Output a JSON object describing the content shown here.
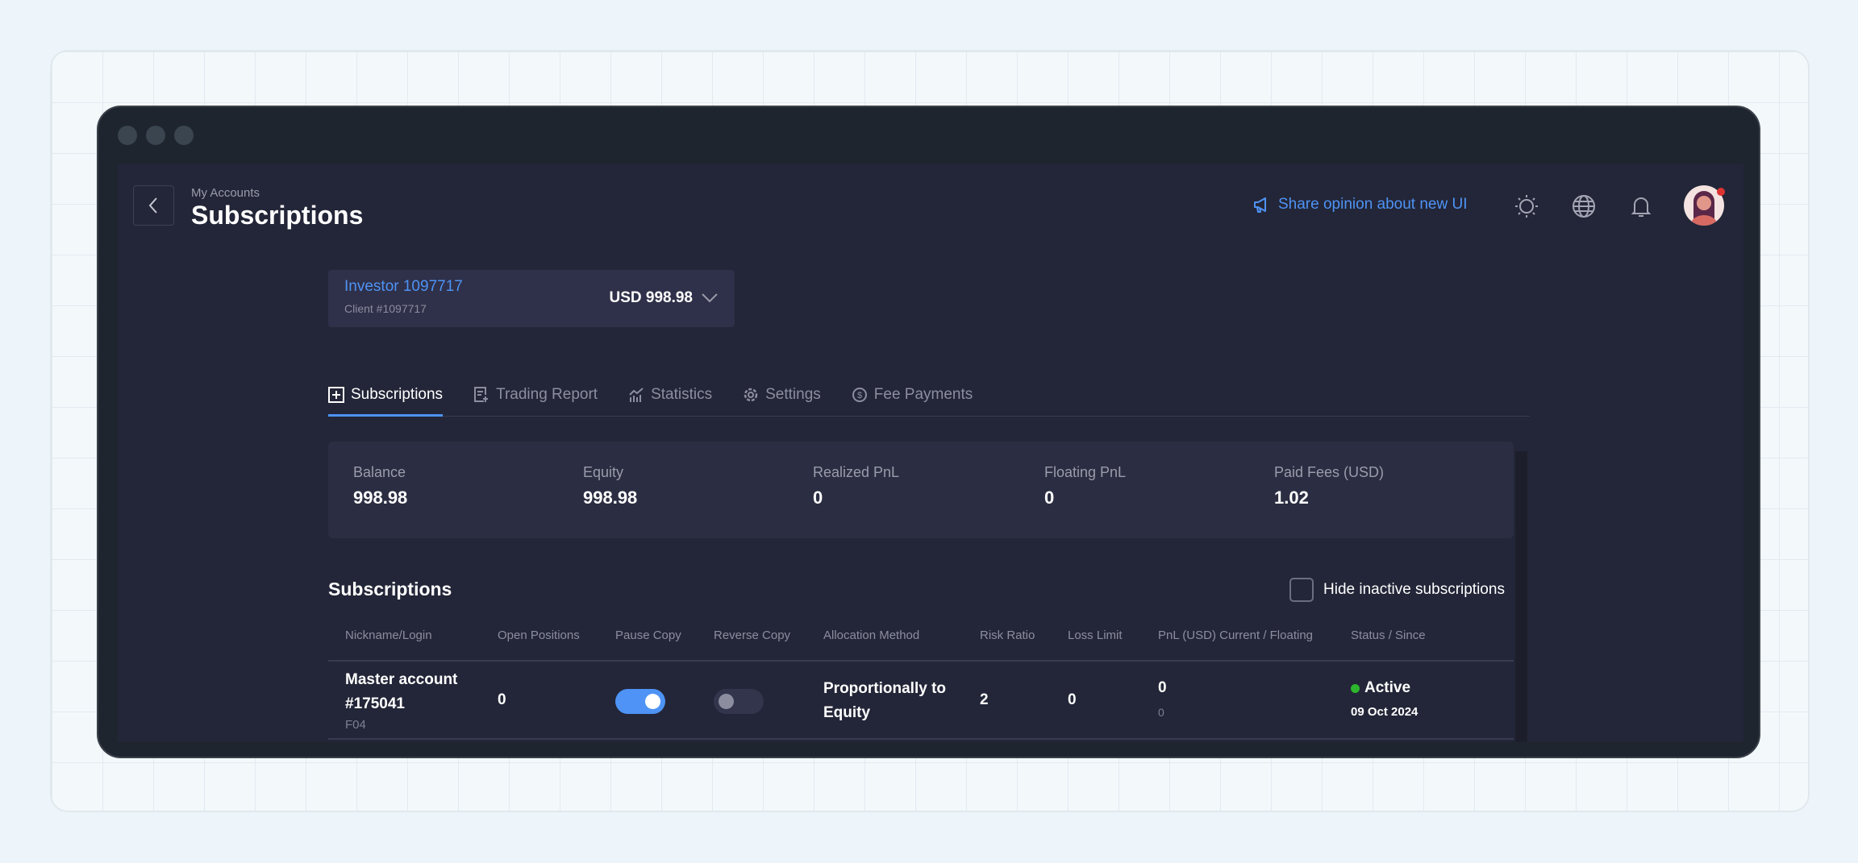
{
  "header": {
    "breadcrumb": "My Accounts",
    "title": "Subscriptions",
    "share_label": "Share opinion about new UI"
  },
  "account": {
    "name": "Investor 1097717",
    "client": "Client #1097717",
    "balance": "USD 998.98"
  },
  "tabs": [
    {
      "label": "Subscriptions",
      "icon": "plus-square-icon",
      "active": true
    },
    {
      "label": "Trading Report",
      "icon": "report-icon"
    },
    {
      "label": "Statistics",
      "icon": "chart-icon"
    },
    {
      "label": "Settings",
      "icon": "gear-icon"
    },
    {
      "label": "Fee Payments",
      "icon": "dollar-circle-icon"
    }
  ],
  "stats": [
    {
      "label": "Balance",
      "value": "998.98"
    },
    {
      "label": "Equity",
      "value": "998.98"
    },
    {
      "label": "Realized PnL",
      "value": "0"
    },
    {
      "label": "Floating PnL",
      "value": "0"
    },
    {
      "label": "Paid Fees (USD)",
      "value": "1.02"
    }
  ],
  "subscriptions": {
    "heading": "Subscriptions",
    "hide_inactive_label": "Hide inactive subscriptions",
    "hide_inactive_checked": false,
    "columns": [
      "Nickname/Login",
      "Open Positions",
      "Pause Copy",
      "Reverse Copy",
      "Allocation Method",
      "Risk Ratio",
      "Loss Limit",
      "PnL (USD) Current / Floating",
      "Status / Since"
    ],
    "rows": [
      {
        "nickname": "Master account",
        "login": "#175041",
        "code": "F04",
        "open_positions": "0",
        "pause_copy": true,
        "reverse_copy": false,
        "allocation_line1": "Proportionally to",
        "allocation_line2": "Equity",
        "risk_ratio": "2",
        "loss_limit": "0",
        "pnl_current": "0",
        "pnl_floating": "0",
        "status": "Active",
        "since": "09 Oct 2024"
      }
    ]
  },
  "colors": {
    "accent": "#4e93f5",
    "active_status": "#2db52d",
    "background": "#232638"
  }
}
